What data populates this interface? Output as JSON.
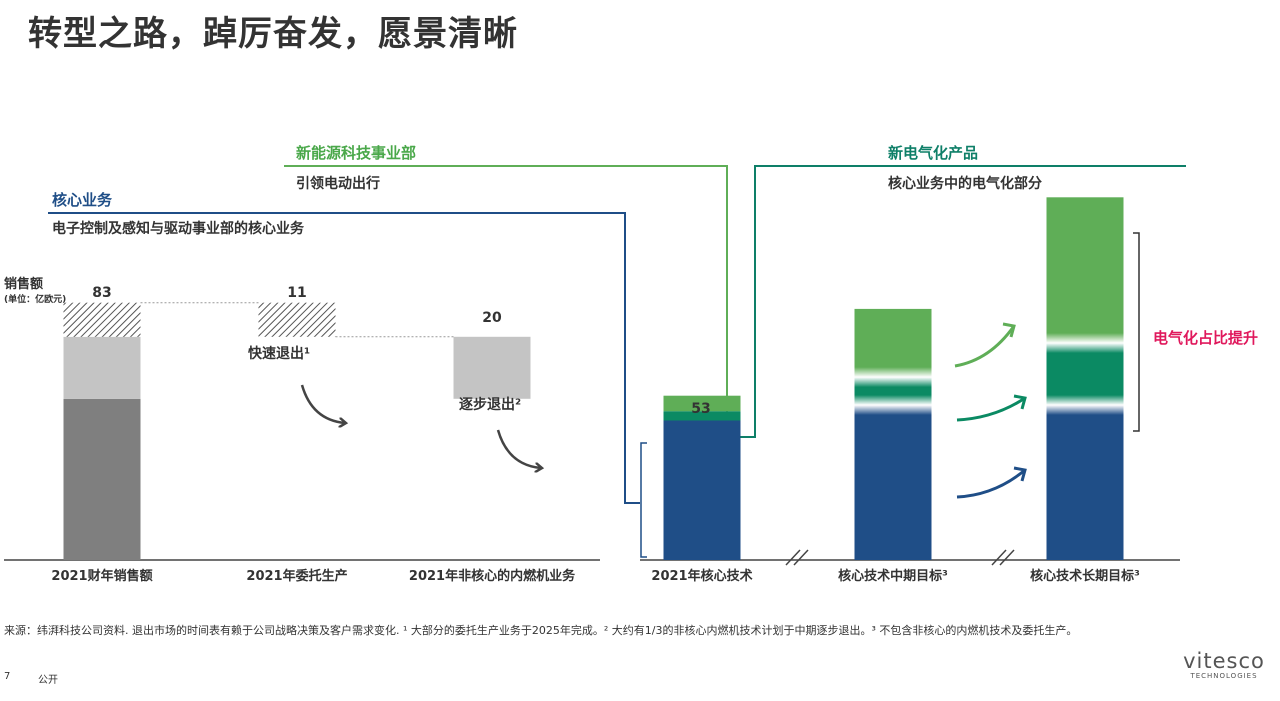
{
  "title": "转型之路，踔厉奋发，愿景清晰",
  "colors": {
    "core_blue": "#1f4e87",
    "light_green": "#5fae57",
    "dark_green": "#0b8a63",
    "gray_dark": "#7f7f7f",
    "gray_light": "#c4c4c4",
    "accent_pink": "#e0185c",
    "header_blue": "#1f4e87",
    "header_green": "#4aa84a",
    "header_teal": "#0e7f68"
  },
  "sections": {
    "core": {
      "title": "核心业务",
      "subtitle": "电子控制及感知与驱动事业部的核心业务"
    },
    "new_energy": {
      "title": "新能源科技事业部",
      "subtitle": "引领电动出行"
    },
    "electrification": {
      "title": "新电气化产品",
      "subtitle": "核心业务中的电气化部分"
    }
  },
  "chart_data": {
    "type": "bar",
    "ylabel": "销售额",
    "unit": "(单位：亿欧元)",
    "categories": [
      "2021财年销售额",
      "2021年委托生产",
      "2021年非核心的内燃机业务",
      "2021年核心技术",
      "核心技术中期目标³",
      "核心技术长期目标³"
    ],
    "values": [
      83,
      11,
      20,
      53,
      null,
      null
    ],
    "value_labels": [
      "83",
      "11",
      "20",
      "53",
      "",
      ""
    ],
    "waterfall": {
      "start": 83,
      "steps": [
        {
          "category": "2021年委托生产",
          "delta": -11,
          "note": "快速退出¹"
        },
        {
          "category": "2021年非核心的内燃机业务",
          "delta": -20,
          "note": "逐步退出²"
        }
      ]
    },
    "ylim": [
      0,
      100
    ],
    "stacks": [
      {
        "category": "2021年核心技术",
        "core": 45,
        "dark_green": 3,
        "light_green": 5
      },
      {
        "category": "核心技术中期目标³",
        "core": 50,
        "dark_green": 9,
        "light_green": 22
      },
      {
        "category": "核心技术长期目标³",
        "core": 50,
        "dark_green": 20,
        "light_green": 47
      }
    ],
    "annotation": "电气化占比提升"
  },
  "footnote": "来源：纬湃科技公司资料. 退出市场的时间表有赖于公司战略决策及客户需求变化. ¹ 大部分的委托生产业务于2025年完成。² 大约有1/3的非核心内燃机技术计划于中期逐步退出。³ 不包含非核心的内燃机技术及委托生产。",
  "page_number": "7",
  "classification": "公开",
  "logo": {
    "name": "vitesco",
    "tagline": "TECHNOLOGIES"
  }
}
